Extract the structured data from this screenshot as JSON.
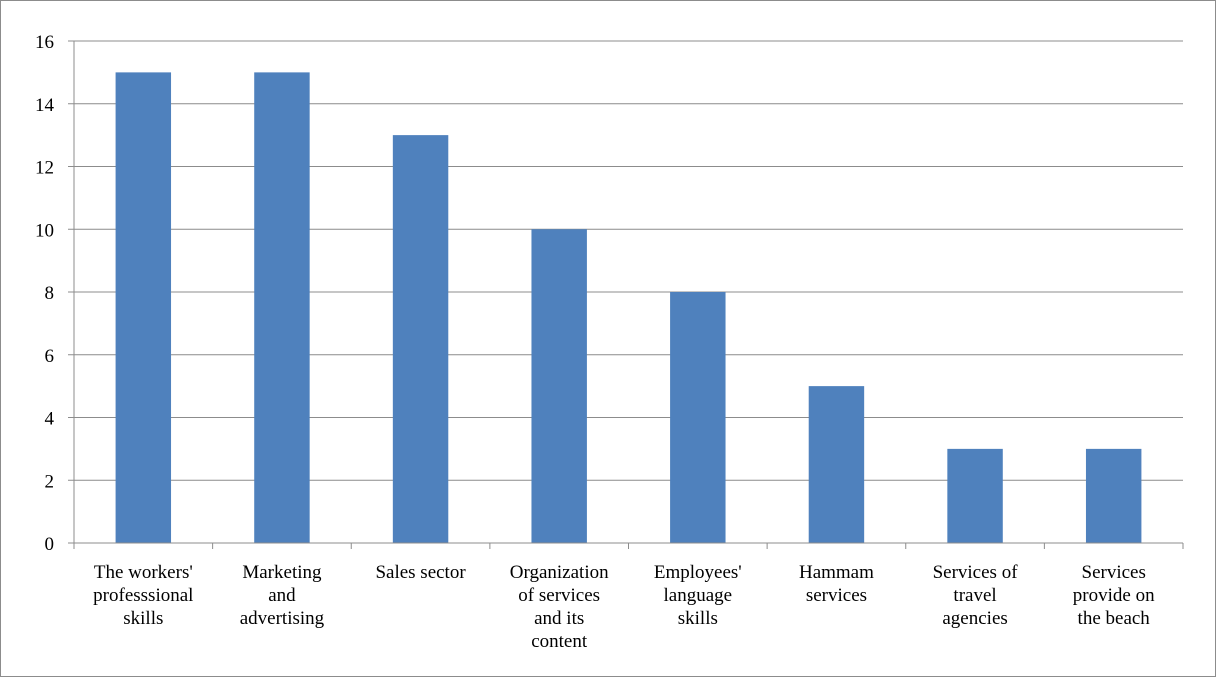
{
  "chart_data": {
    "type": "bar",
    "title": "",
    "xlabel": "",
    "ylabel": "",
    "categories": [
      [
        "The workers'",
        "professsional",
        "skills"
      ],
      [
        "Marketing",
        "and",
        "advertising"
      ],
      [
        "Sales sector"
      ],
      [
        "Organization",
        "of services",
        "and its",
        "content"
      ],
      [
        "Employees'",
        "language",
        "skills"
      ],
      [
        "Hammam",
        "services"
      ],
      [
        "Services of",
        "travel",
        "agencies"
      ],
      [
        "Services",
        "provide on",
        "the beach"
      ]
    ],
    "values": [
      15,
      15,
      13,
      10,
      8,
      5,
      3,
      3
    ],
    "ylim": [
      0,
      16
    ],
    "yticks": [
      "0",
      "2",
      "4",
      "6",
      "8",
      "10",
      "12",
      "14",
      "16"
    ],
    "bar_color": "#4f81bd",
    "grid": true,
    "legend": "none"
  }
}
